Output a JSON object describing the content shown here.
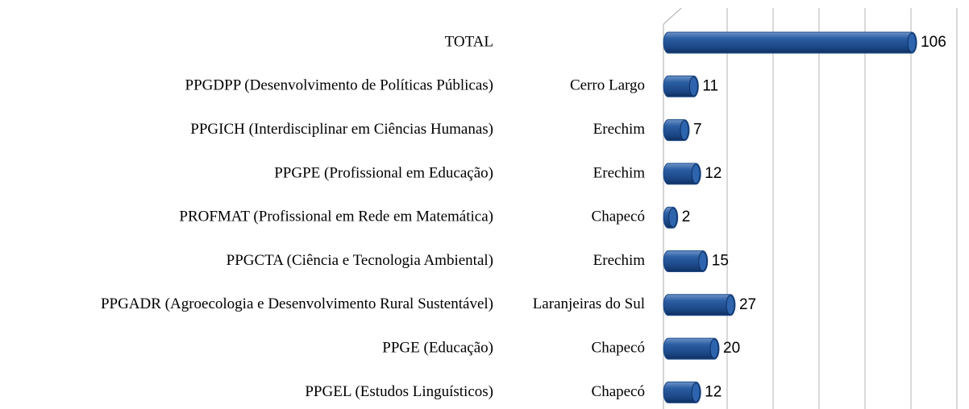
{
  "chart_data": {
    "type": "bar",
    "orientation": "horizontal",
    "categories": [
      "TOTAL",
      "PPGDPP (Desenvolvimento de Políticas Públicas)",
      "PPGICH (Interdisciplinar em Ciências Humanas)",
      "PPGPE (Profissional em Educação)",
      "PROFMAT (Profissional em Rede em Matemática)",
      "PPGCTA (Ciência e Tecnologia Ambiental)",
      "PPGADR (Agroecologia e Desenvolvimento Rural Sustentável)",
      "PPGE (Educação)",
      "PPGEL (Estudos Linguísticos)"
    ],
    "campus": [
      null,
      "Cerro Largo",
      "Erechim",
      "Erechim",
      "Chapecó",
      "Erechim",
      "Laranjeiras do Sul",
      "Chapecó",
      "Chapecó"
    ],
    "values": [
      106,
      11,
      7,
      12,
      2,
      15,
      27,
      20,
      12
    ],
    "color": "#1f4e8c",
    "xlim": [
      0,
      120
    ],
    "xticks": [
      0,
      20,
      40,
      60,
      80,
      100,
      120
    ],
    "grid": true
  }
}
